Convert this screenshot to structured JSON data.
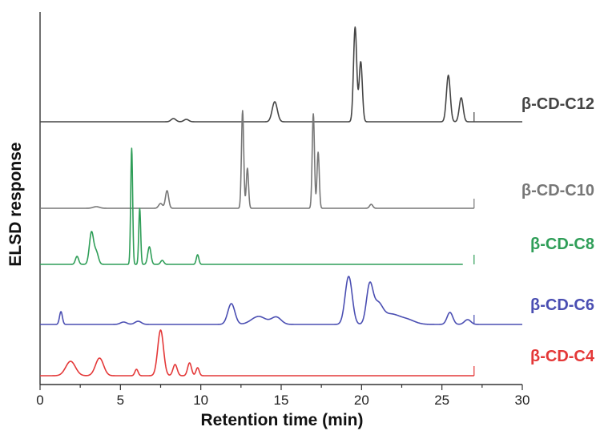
{
  "chart_data": {
    "type": "line",
    "xlabel": "Retention time (min)",
    "ylabel": "ELSD response",
    "xlim": [
      0,
      30
    ],
    "xticks": [
      "0",
      "5",
      "10",
      "15",
      "20",
      "25",
      "30"
    ],
    "grid": false,
    "series": [
      {
        "name": "β-CD-C12",
        "color": "#454545",
        "end": 30,
        "peaks": [
          [
            8.3,
            4,
            0.15
          ],
          [
            9.1,
            3,
            0.15
          ],
          [
            14.6,
            25,
            0.16
          ],
          [
            19.6,
            118,
            0.1
          ],
          [
            19.95,
            75,
            0.1
          ],
          [
            25.4,
            58,
            0.12
          ],
          [
            26.2,
            30,
            0.12
          ]
        ]
      },
      {
        "name": "β-CD-C10",
        "color": "#777777",
        "end": 27,
        "peaks": [
          [
            3.5,
            2,
            0.2
          ],
          [
            7.5,
            6,
            0.12
          ],
          [
            7.9,
            22,
            0.1
          ],
          [
            12.6,
            122,
            0.07
          ],
          [
            12.9,
            50,
            0.07
          ],
          [
            17.0,
            118,
            0.07
          ],
          [
            17.3,
            70,
            0.07
          ],
          [
            20.6,
            5,
            0.1
          ]
        ]
      },
      {
        "name": "β-CD-C8",
        "color": "#2f9e58",
        "end": 26.3,
        "peaks": [
          [
            2.3,
            10,
            0.1
          ],
          [
            3.2,
            40,
            0.13
          ],
          [
            3.5,
            15,
            0.13
          ],
          [
            5.7,
            145,
            0.06
          ],
          [
            6.2,
            70,
            0.06
          ],
          [
            6.8,
            22,
            0.1
          ],
          [
            7.6,
            5,
            0.1
          ],
          [
            9.8,
            12,
            0.08
          ]
        ]
      },
      {
        "name": "β-CD-C6",
        "color": "#4a4eb2",
        "end": 30,
        "peaks": [
          [
            1.3,
            16,
            0.09
          ],
          [
            5.2,
            3,
            0.2
          ],
          [
            6.1,
            4,
            0.2
          ],
          [
            11.9,
            26,
            0.22
          ],
          [
            13.6,
            10,
            0.45
          ],
          [
            14.7,
            9,
            0.3
          ],
          [
            19.2,
            60,
            0.22
          ],
          [
            20.5,
            46,
            0.2
          ],
          [
            21.0,
            24,
            0.3
          ],
          [
            21.8,
            12,
            0.5
          ],
          [
            22.8,
            6,
            0.5
          ],
          [
            25.5,
            15,
            0.18
          ],
          [
            26.6,
            6,
            0.2
          ]
        ]
      },
      {
        "name": "β-CD-C4",
        "color": "#e43838",
        "end": 27,
        "peaks": [
          [
            1.9,
            18,
            0.3
          ],
          [
            3.7,
            22,
            0.25
          ],
          [
            6.0,
            8,
            0.1
          ],
          [
            7.5,
            57,
            0.18
          ],
          [
            8.4,
            14,
            0.13
          ],
          [
            9.3,
            16,
            0.12
          ],
          [
            9.8,
            10,
            0.1
          ]
        ]
      }
    ]
  }
}
